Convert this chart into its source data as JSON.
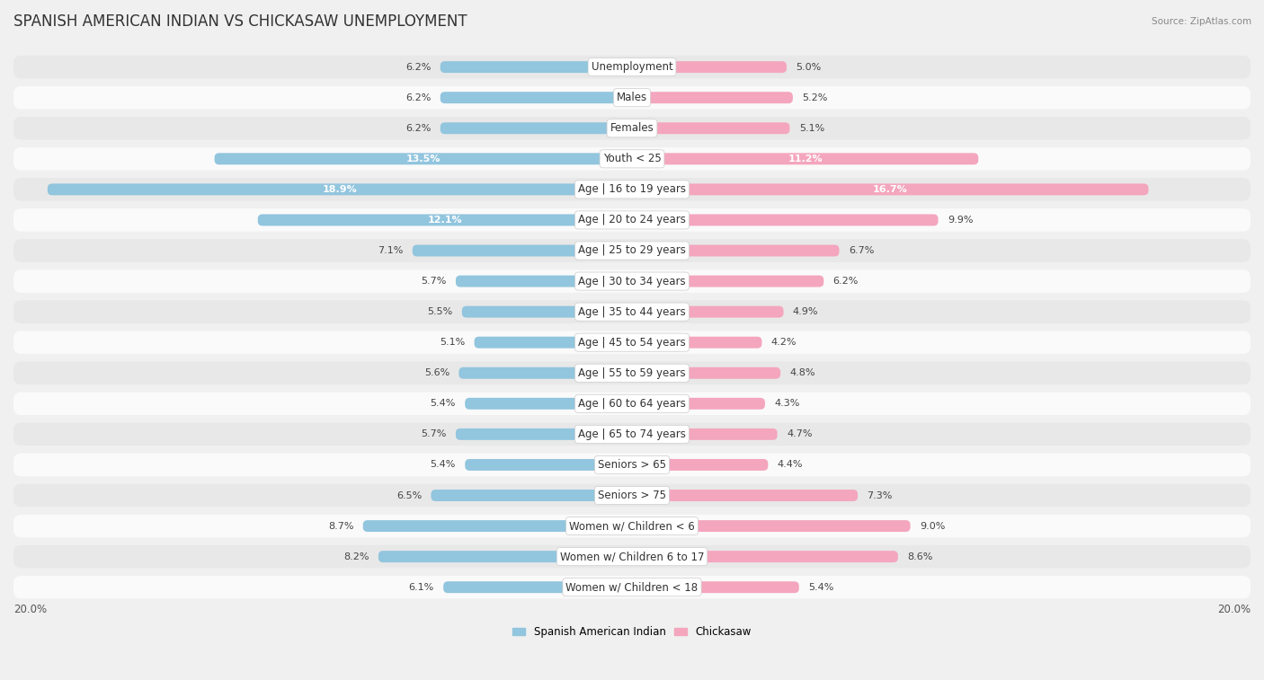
{
  "title": "SPANISH AMERICAN INDIAN VS CHICKASAW UNEMPLOYMENT",
  "source": "Source: ZipAtlas.com",
  "categories": [
    "Unemployment",
    "Males",
    "Females",
    "Youth < 25",
    "Age | 16 to 19 years",
    "Age | 20 to 24 years",
    "Age | 25 to 29 years",
    "Age | 30 to 34 years",
    "Age | 35 to 44 years",
    "Age | 45 to 54 years",
    "Age | 55 to 59 years",
    "Age | 60 to 64 years",
    "Age | 65 to 74 years",
    "Seniors > 65",
    "Seniors > 75",
    "Women w/ Children < 6",
    "Women w/ Children 6 to 17",
    "Women w/ Children < 18"
  ],
  "left_values": [
    6.2,
    6.2,
    6.2,
    13.5,
    18.9,
    12.1,
    7.1,
    5.7,
    5.5,
    5.1,
    5.6,
    5.4,
    5.7,
    5.4,
    6.5,
    8.7,
    8.2,
    6.1
  ],
  "right_values": [
    5.0,
    5.2,
    5.1,
    11.2,
    16.7,
    9.9,
    6.7,
    6.2,
    4.9,
    4.2,
    4.8,
    4.3,
    4.7,
    4.4,
    7.3,
    9.0,
    8.6,
    5.4
  ],
  "left_color": "#92c5de",
  "right_color": "#f4a6be",
  "left_label": "Spanish American Indian",
  "right_label": "Chickasaw",
  "max_val": 20.0,
  "bg_color": "#f0f0f0",
  "row_even_color": "#e8e8e8",
  "row_odd_color": "#fafafa",
  "title_fontsize": 12,
  "label_fontsize": 8.5,
  "value_fontsize": 8,
  "axis_label_fontsize": 8.5,
  "white_text_threshold": 10.0
}
